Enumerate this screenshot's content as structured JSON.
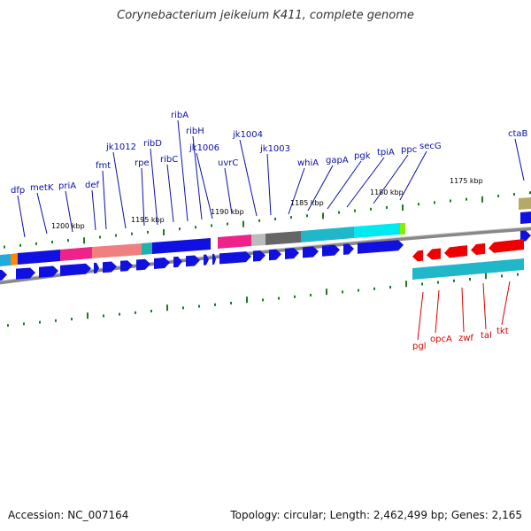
{
  "title": "Corynebacterium jeikeium K411, complete genome",
  "accession": "Accession: NC_007164",
  "summary": "Topology: circular; Length: 2,462,499 bp; Genes: 2,165",
  "colors": {
    "forward_label": "#0a10a8",
    "reverse_label": "#dd0000",
    "tick": "#1f7a1f",
    "backbone": "#7f7f7f"
  },
  "scale_labels": [
    "1200 kbp",
    "1195 kbp",
    "1190 kbp",
    "1185 kbp",
    "1180 kbp",
    "1175 kbp"
  ],
  "forward_genes": [
    "dfp",
    "metK",
    "priA",
    "def",
    "fmt",
    "jk1012",
    "rpe",
    "ribD",
    "ribC",
    "ribA",
    "ribH",
    "jk1006",
    "uvrC",
    "jk1004",
    "jk1003",
    "whiA",
    "gapA",
    "pgk",
    "tpiA",
    "ppc",
    "secG",
    "ctaB"
  ],
  "reverse_genes": [
    "pgl",
    "opcA",
    "zwf",
    "tal",
    "tkt"
  ]
}
